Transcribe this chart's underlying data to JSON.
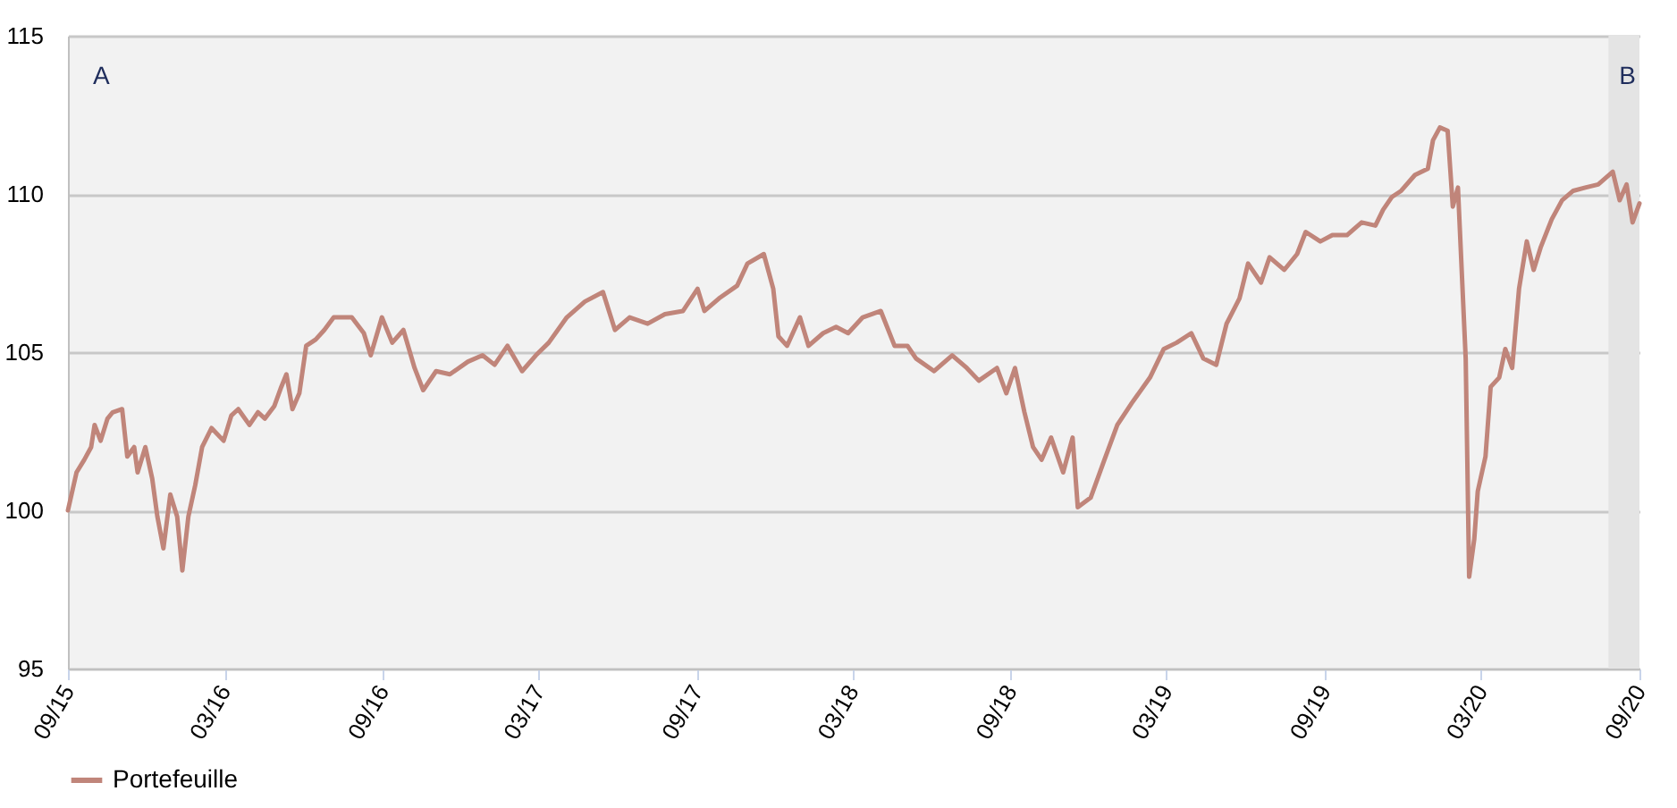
{
  "chart_data": {
    "type": "line",
    "legend": "bottom",
    "grid": "y",
    "marker": "none",
    "line_style": "solid",
    "annotations": [
      "A"
    ],
    "xlim": [
      "2015-09-01",
      "2020-09-01"
    ],
    "xticks": [
      {
        "value": "2015-09-01",
        "label": "09/15"
      },
      {
        "value": "2016-03-01",
        "label": "03/16"
      },
      {
        "value": "2016-09-01",
        "label": "09/16"
      },
      {
        "value": "2017-03-01",
        "label": "03/17"
      },
      {
        "value": "2017-09-01",
        "label": "09/17"
      },
      {
        "value": "2018-03-01",
        "label": "03/18"
      },
      {
        "value": "2018-09-01",
        "label": "09/18"
      },
      {
        "value": "2019-03-01",
        "label": "03/19"
      },
      {
        "value": "2019-09-01",
        "label": "09/19"
      },
      {
        "value": "2020-03-01",
        "label": "03/20"
      },
      {
        "value": "2020-09-01",
        "label": "09/20"
      }
    ],
    "ylim": [
      95,
      115
    ],
    "yticks": [
      95,
      100,
      105,
      110,
      115
    ],
    "bands": [
      {
        "axis": "x",
        "from": "2020-07-27",
        "to": "2020-09-01",
        "label": "B",
        "color": "#e4e4e4"
      }
    ],
    "series": [
      {
        "name": "Portefeuille",
        "color": "#c0857a",
        "x": [
          "2015-09-01",
          "2015-09-11",
          "2015-09-20",
          "2015-09-28",
          "2015-10-02",
          "2015-10-09",
          "2015-10-17",
          "2015-10-23",
          "2015-11-03",
          "2015-11-09",
          "2015-11-17",
          "2015-11-21",
          "2015-11-30",
          "2015-12-08",
          "2015-12-14",
          "2015-12-21",
          "2015-12-29",
          "2016-01-06",
          "2016-01-12",
          "2016-01-19",
          "2016-01-27",
          "2016-02-04",
          "2016-02-15",
          "2016-02-29",
          "2016-03-09",
          "2016-03-17",
          "2016-03-30",
          "2016-04-09",
          "2016-04-17",
          "2016-04-28",
          "2016-05-06",
          "2016-05-12",
          "2016-05-19",
          "2016-05-27",
          "2016-06-04",
          "2016-06-15",
          "2016-06-25",
          "2016-07-06",
          "2016-07-27",
          "2016-08-10",
          "2016-08-18",
          "2016-08-31",
          "2016-09-12",
          "2016-09-25",
          "2016-10-08",
          "2016-10-18",
          "2016-11-02",
          "2016-11-18",
          "2016-12-09",
          "2016-12-26",
          "2017-01-09",
          "2017-01-24",
          "2017-02-10",
          "2017-02-26",
          "2017-03-13",
          "2017-04-03",
          "2017-04-24",
          "2017-05-15",
          "2017-05-29",
          "2017-06-15",
          "2017-07-06",
          "2017-07-26",
          "2017-08-16",
          "2017-09-02",
          "2017-09-10",
          "2017-09-27",
          "2017-10-18",
          "2017-10-30",
          "2017-11-18",
          "2017-11-29",
          "2017-12-05",
          "2017-12-15",
          "2017-12-30",
          "2018-01-09",
          "2018-01-26",
          "2018-02-10",
          "2018-02-24",
          "2018-03-13",
          "2018-04-03",
          "2018-04-19",
          "2018-05-04",
          "2018-05-14",
          "2018-06-04",
          "2018-06-25",
          "2018-07-12",
          "2018-07-26",
          "2018-08-16",
          "2018-08-27",
          "2018-09-06",
          "2018-09-17",
          "2018-09-27",
          "2018-10-07",
          "2018-10-18",
          "2018-11-01",
          "2018-11-12",
          "2018-11-18",
          "2018-12-03",
          "2018-12-19",
          "2019-01-03",
          "2019-01-20",
          "2019-02-10",
          "2019-02-26",
          "2019-03-13",
          "2019-03-30",
          "2019-04-13",
          "2019-04-28",
          "2019-05-10",
          "2019-05-25",
          "2019-06-04",
          "2019-06-19",
          "2019-06-29",
          "2019-07-16",
          "2019-07-31",
          "2019-08-10",
          "2019-08-27",
          "2019-09-10",
          "2019-09-27",
          "2019-10-14",
          "2019-10-30",
          "2019-11-08",
          "2019-11-18",
          "2019-11-29",
          "2019-12-15",
          "2019-12-30",
          "2020-01-05",
          "2020-01-13",
          "2020-01-22",
          "2020-01-28",
          "2020-02-03",
          "2020-02-12",
          "2020-02-16",
          "2020-02-22",
          "2020-02-26",
          "2020-03-06",
          "2020-03-12",
          "2020-03-22",
          "2020-03-29",
          "2020-04-06",
          "2020-04-14",
          "2020-04-23",
          "2020-05-01",
          "2020-05-09",
          "2020-05-22",
          "2020-06-03",
          "2020-06-16",
          "2020-06-30",
          "2020-07-15",
          "2020-08-01",
          "2020-08-09",
          "2020-08-17",
          "2020-08-24",
          "2020-09-01"
        ],
        "values": [
          100.0,
          101.2,
          101.6,
          102.0,
          102.7,
          102.2,
          102.9,
          103.1,
          103.2,
          101.7,
          102.0,
          101.2,
          102.0,
          101.0,
          99.8,
          98.8,
          100.5,
          99.8,
          98.1,
          99.8,
          100.8,
          102.0,
          102.6,
          102.2,
          103.0,
          103.2,
          102.7,
          103.1,
          102.9,
          103.3,
          103.9,
          104.3,
          103.2,
          103.7,
          105.2,
          105.4,
          105.7,
          106.1,
          106.1,
          105.6,
          104.9,
          106.1,
          105.3,
          105.7,
          104.5,
          103.8,
          104.4,
          104.3,
          104.7,
          104.9,
          104.6,
          105.2,
          104.4,
          104.9,
          105.3,
          106.1,
          106.6,
          106.9,
          105.7,
          106.1,
          105.9,
          106.2,
          106.3,
          107.0,
          106.3,
          106.7,
          107.1,
          107.8,
          108.1,
          107.0,
          105.5,
          105.2,
          106.1,
          105.2,
          105.6,
          105.8,
          105.6,
          106.1,
          106.3,
          105.2,
          105.2,
          104.8,
          104.4,
          104.9,
          104.5,
          104.1,
          104.5,
          103.7,
          104.5,
          103.1,
          102.0,
          101.6,
          102.3,
          101.2,
          102.3,
          100.1,
          100.4,
          101.6,
          102.7,
          103.4,
          104.2,
          105.1,
          105.3,
          105.6,
          104.8,
          104.6,
          105.9,
          106.7,
          107.8,
          107.2,
          108.0,
          107.6,
          108.1,
          108.8,
          108.5,
          108.7,
          108.7,
          109.1,
          109.0,
          109.5,
          109.9,
          110.1,
          110.6,
          110.8,
          111.7,
          112.1,
          112.0,
          109.6,
          110.2,
          104.8,
          97.9,
          99.1,
          100.6,
          101.7,
          103.9,
          104.2,
          105.1,
          104.5,
          107.0,
          108.5,
          107.6,
          108.3,
          109.2,
          109.8,
          110.1,
          110.2,
          110.3,
          110.7,
          109.8,
          110.3,
          109.1,
          109.7
        ]
      }
    ]
  }
}
